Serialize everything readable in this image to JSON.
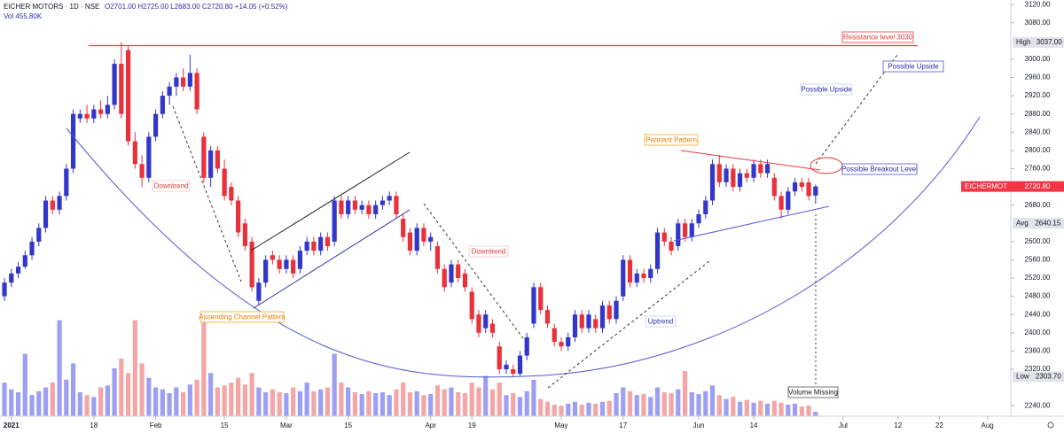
{
  "chart_data": {
    "type": "candlestick",
    "title": "EICHER MOTORS · 1D · NSE",
    "ohlc_label": "O2701.00 H2725.00 L2683.00 C2720.80 +14.05 (+0.52%)",
    "volume_label": "Vol 455.80K",
    "up_color": "#3236c9",
    "down_color": "#e8313a",
    "x": [
      0,
      1,
      2,
      3,
      4,
      5,
      6,
      7,
      8,
      9,
      10,
      11,
      12,
      13,
      14,
      15,
      16,
      17,
      18,
      19,
      20,
      21,
      22,
      23,
      24,
      25,
      26,
      27,
      28,
      29,
      30,
      31,
      32,
      33,
      34,
      35,
      36,
      37,
      38,
      39,
      40,
      41,
      42,
      43,
      44,
      45,
      46,
      47,
      48,
      49,
      50,
      51,
      52,
      53,
      54,
      55,
      56,
      57,
      58,
      59,
      60,
      61,
      62,
      63,
      64,
      65,
      66,
      67,
      68,
      69,
      70,
      71,
      72,
      73,
      74,
      75,
      76,
      77,
      78,
      79,
      80,
      81,
      82,
      83,
      84,
      85,
      86,
      87,
      88,
      89,
      90,
      91,
      92,
      93,
      94,
      95,
      96,
      97,
      98,
      99,
      100,
      101,
      102,
      103,
      104,
      105,
      106,
      107,
      108,
      109,
      110,
      111,
      112,
      113,
      114,
      115,
      116,
      117,
      118
    ],
    "candles": [
      [
        2480,
        2520,
        2470,
        2510
      ],
      [
        2510,
        2540,
        2500,
        2530
      ],
      [
        2530,
        2555,
        2520,
        2545
      ],
      [
        2545,
        2580,
        2540,
        2570
      ],
      [
        2570,
        2610,
        2560,
        2600
      ],
      [
        2600,
        2640,
        2590,
        2630
      ],
      [
        2630,
        2700,
        2620,
        2690
      ],
      [
        2690,
        2700,
        2660,
        2670
      ],
      [
        2670,
        2710,
        2660,
        2700
      ],
      [
        2700,
        2770,
        2690,
        2760
      ],
      [
        2760,
        2890,
        2750,
        2880
      ],
      [
        2870,
        2890,
        2860,
        2880
      ],
      [
        2880,
        2900,
        2860,
        2870
      ],
      [
        2870,
        2900,
        2860,
        2890
      ],
      [
        2890,
        2910,
        2870,
        2880
      ],
      [
        2880,
        2920,
        2870,
        2900
      ],
      [
        2900,
        3000,
        2890,
        2990
      ],
      [
        2990,
        3037,
        2870,
        2880
      ],
      [
        3020,
        3030,
        2810,
        2820
      ],
      [
        2820,
        2840,
        2760,
        2770
      ],
      [
        2770,
        2790,
        2720,
        2740
      ],
      [
        2740,
        2840,
        2730,
        2830
      ],
      [
        2830,
        2890,
        2820,
        2880
      ],
      [
        2880,
        2930,
        2870,
        2920
      ],
      [
        2920,
        2950,
        2900,
        2940
      ],
      [
        2940,
        2970,
        2920,
        2960
      ],
      [
        2960,
        2980,
        2930,
        2940
      ],
      [
        2940,
        3010,
        2930,
        2970
      ],
      [
        2970,
        2980,
        2880,
        2890
      ],
      [
        2830,
        2840,
        2730,
        2740
      ],
      [
        2740,
        2810,
        2720,
        2800
      ],
      [
        2800,
        2810,
        2750,
        2760
      ],
      [
        2760,
        2780,
        2690,
        2700
      ],
      [
        2720,
        2730,
        2680,
        2690
      ],
      [
        2690,
        2700,
        2610,
        2620
      ],
      [
        2640,
        2650,
        2580,
        2590
      ],
      [
        2600,
        2610,
        2490,
        2500
      ],
      [
        2470,
        2520,
        2460,
        2510
      ],
      [
        2510,
        2570,
        2500,
        2560
      ],
      [
        2570,
        2580,
        2550,
        2560
      ],
      [
        2560,
        2570,
        2530,
        2540
      ],
      [
        2540,
        2570,
        2530,
        2560
      ],
      [
        2560,
        2570,
        2520,
        2530
      ],
      [
        2540,
        2590,
        2530,
        2580
      ],
      [
        2580,
        2610,
        2570,
        2600
      ],
      [
        2600,
        2610,
        2570,
        2580
      ],
      [
        2580,
        2620,
        2570,
        2610
      ],
      [
        2610,
        2620,
        2580,
        2590
      ],
      [
        2600,
        2700,
        2590,
        2690
      ],
      [
        2690,
        2700,
        2650,
        2660
      ],
      [
        2660,
        2700,
        2650,
        2690
      ],
      [
        2690,
        2700,
        2660,
        2670
      ],
      [
        2670,
        2690,
        2660,
        2680
      ],
      [
        2680,
        2690,
        2650,
        2660
      ],
      [
        2660,
        2690,
        2650,
        2680
      ],
      [
        2680,
        2700,
        2670,
        2690
      ],
      [
        2690,
        2710,
        2680,
        2700
      ],
      [
        2700,
        2710,
        2650,
        2660
      ],
      [
        2650,
        2660,
        2600,
        2610
      ],
      [
        2620,
        2630,
        2570,
        2580
      ],
      [
        2580,
        2640,
        2570,
        2630
      ],
      [
        2630,
        2640,
        2590,
        2600
      ],
      [
        2600,
        2620,
        2580,
        2610
      ],
      [
        2590,
        2600,
        2530,
        2540
      ],
      [
        2540,
        2550,
        2490,
        2500
      ],
      [
        2510,
        2560,
        2500,
        2550
      ],
      [
        2550,
        2560,
        2510,
        2520
      ],
      [
        2530,
        2540,
        2490,
        2500
      ],
      [
        2490,
        2500,
        2420,
        2430
      ],
      [
        2440,
        2450,
        2390,
        2400
      ],
      [
        2410,
        2450,
        2400,
        2440
      ],
      [
        2420,
        2430,
        2390,
        2400
      ],
      [
        2370,
        2380,
        2310,
        2320
      ],
      [
        2320,
        2340,
        2310,
        2330
      ],
      [
        2320,
        2330,
        2303.7,
        2310
      ],
      [
        2310,
        2360,
        2305,
        2350
      ],
      [
        2350,
        2400,
        2340,
        2390
      ],
      [
        2420,
        2510,
        2410,
        2500
      ],
      [
        2500,
        2510,
        2440,
        2450
      ],
      [
        2450,
        2460,
        2410,
        2420
      ],
      [
        2410,
        2420,
        2370,
        2380
      ],
      [
        2380,
        2390,
        2360,
        2370
      ],
      [
        2370,
        2400,
        2360,
        2390
      ],
      [
        2390,
        2450,
        2380,
        2440
      ],
      [
        2440,
        2450,
        2400,
        2410
      ],
      [
        2410,
        2450,
        2400,
        2440
      ],
      [
        2430,
        2440,
        2400,
        2410
      ],
      [
        2410,
        2470,
        2400,
        2460
      ],
      [
        2460,
        2470,
        2420,
        2430
      ],
      [
        2430,
        2480,
        2420,
        2470
      ],
      [
        2480,
        2570,
        2470,
        2560
      ],
      [
        2560,
        2570,
        2500,
        2510
      ],
      [
        2510,
        2540,
        2500,
        2530
      ],
      [
        2530,
        2540,
        2510,
        2520
      ],
      [
        2520,
        2550,
        2510,
        2540
      ],
      [
        2540,
        2630,
        2530,
        2620
      ],
      [
        2620,
        2630,
        2590,
        2600
      ],
      [
        2600,
        2610,
        2570,
        2580
      ],
      [
        2590,
        2650,
        2580,
        2640
      ],
      [
        2640,
        2650,
        2600,
        2610
      ],
      [
        2610,
        2650,
        2600,
        2640
      ],
      [
        2640,
        2670,
        2630,
        2660
      ],
      [
        2660,
        2700,
        2650,
        2690
      ],
      [
        2690,
        2780,
        2680,
        2770
      ],
      [
        2770,
        2790,
        2720,
        2730
      ],
      [
        2730,
        2770,
        2720,
        2760
      ],
      [
        2760,
        2770,
        2710,
        2720
      ],
      [
        2720,
        2760,
        2710,
        2750
      ],
      [
        2750,
        2760,
        2730,
        2740
      ],
      [
        2740,
        2780,
        2730,
        2770
      ],
      [
        2770,
        2780,
        2740,
        2750
      ],
      [
        2750,
        2780,
        2740,
        2770
      ],
      [
        2740,
        2750,
        2690,
        2700
      ],
      [
        2700,
        2710,
        2650,
        2670
      ],
      [
        2670,
        2720,
        2660,
        2710
      ],
      [
        2710,
        2740,
        2700,
        2730
      ],
      [
        2730,
        2740,
        2710,
        2720
      ],
      [
        2730,
        2740,
        2690,
        2700
      ],
      [
        2701,
        2725,
        2683,
        2720.8
      ]
    ],
    "volume": {
      "up_color": "#8c8ef0",
      "down_color": "#f29797",
      "ylim": [
        0,
        12000
      ],
      "values": [
        3500,
        2800,
        2500,
        6500,
        2200,
        2600,
        3000,
        3500,
        10000,
        3800,
        5500,
        2500,
        2200,
        2000,
        3000,
        3200,
        5000,
        6000,
        4500,
        10000,
        5500,
        4000,
        3000,
        2800,
        2400,
        3000,
        2500,
        3300,
        3800,
        10000,
        4500,
        3000,
        3200,
        3500,
        4000,
        3300,
        4500,
        3000,
        2500,
        2800,
        2500,
        2400,
        3000,
        2600,
        3500,
        2600,
        2800,
        3000,
        6500,
        3500,
        3000,
        2500,
        2300,
        2600,
        2400,
        2500,
        2200,
        2800,
        3500,
        2500,
        2600,
        2200,
        2300,
        3200,
        2800,
        3000,
        2500,
        2400,
        3500,
        3000,
        4200,
        2800,
        3500,
        2200,
        2400,
        2000,
        2600,
        3800,
        1800,
        1500,
        1200,
        1100,
        1300,
        1500,
        1200,
        1400,
        1300,
        1500,
        1600,
        2400,
        3000,
        2600,
        2200,
        2300,
        2000,
        3000,
        2500,
        2400,
        2800,
        4700,
        2500,
        2300,
        2600,
        3200,
        2200,
        1800,
        2000,
        1500,
        1700,
        1400,
        1600,
        1300,
        1600,
        1400,
        1200,
        1300,
        1000,
        1100,
        455.8
      ]
    },
    "xlim": [
      -0.65,
      146.4
    ],
    "xticks": [
      {
        "value": 1,
        "label": "2021"
      },
      {
        "value": 13,
        "label": "18"
      },
      {
        "value": 22,
        "label": "Feb"
      },
      {
        "value": 32,
        "label": "15"
      },
      {
        "value": 41,
        "label": "Mar"
      },
      {
        "value": 50,
        "label": "15"
      },
      {
        "value": 62,
        "label": "Apr"
      },
      {
        "value": 68,
        "label": "19"
      },
      {
        "value": 81,
        "label": "May"
      },
      {
        "value": 90,
        "label": "17"
      },
      {
        "value": 101,
        "label": "Jun"
      },
      {
        "value": 109,
        "label": "14"
      },
      {
        "value": 122,
        "label": "Jul"
      },
      {
        "value": 130,
        "label": "12"
      },
      {
        "value": 136,
        "label": "22"
      },
      {
        "value": 143,
        "label": "Aug"
      }
    ],
    "ylim": [
      2217,
      3130
    ],
    "yticks": [
      {
        "value": 3120,
        "label": "3120.00"
      },
      {
        "value": 3080,
        "label": "3080.00"
      },
      {
        "value": 3000,
        "label": "3000.00"
      },
      {
        "value": 2960,
        "label": "2960.00"
      },
      {
        "value": 2920,
        "label": "2920.00"
      },
      {
        "value": 2880,
        "label": "2880.00"
      },
      {
        "value": 2840,
        "label": "2840.00"
      },
      {
        "value": 2800,
        "label": "2800.00"
      },
      {
        "value": 2760,
        "label": "2760.00"
      },
      {
        "value": 2680,
        "label": "2680.00"
      },
      {
        "value": 2600,
        "label": "2600.00"
      },
      {
        "value": 2560,
        "label": "2560.00"
      },
      {
        "value": 2520,
        "label": "2520.00"
      },
      {
        "value": 2480,
        "label": "2480.00"
      },
      {
        "value": 2440,
        "label": "2440.00"
      },
      {
        "value": 2400,
        "label": "2400.00"
      },
      {
        "value": 2360,
        "label": "2360.00"
      },
      {
        "value": 2320,
        "label": "2320.00"
      },
      {
        "value": 2240,
        "label": "2240.00"
      }
    ],
    "price_markers": {
      "names": [
        "High",
        "EICHERMOT",
        "Avg",
        "Low"
      ],
      "values": [
        3037,
        2720.8,
        2640.15,
        2303.7
      ],
      "value_labels": [
        "3037.00",
        "2720.80",
        "2640.15",
        "2303.70"
      ],
      "colors": [
        "#e0e3eb",
        "#f23645",
        "#e0e3eb",
        "#e0e3eb"
      ]
    },
    "resistance": 3030,
    "resistance_color": "#f23645",
    "annotations": [
      "Resistance level 3030",
      "Possible Upside",
      "Possible Upside",
      "Possible Breakout Level",
      "Pennant Pattern",
      "Downtrend",
      "Downtrend",
      "Ascending Channel Pattern",
      "Uptrend",
      "Volume Missing"
    ]
  }
}
